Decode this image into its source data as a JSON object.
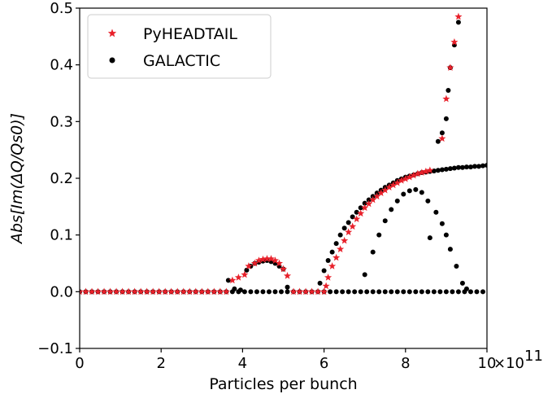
{
  "chart_data": {
    "type": "scatter",
    "xlabel": "Particles per bunch",
    "ylabel": "Abs[Im(ΔQ/Qs0)]",
    "x_offset_label": "1e11",
    "x_multiplier_text": "×10",
    "x_multiplier_exp": "11",
    "xlim": [
      0,
      10
    ],
    "ylim": [
      -0.1,
      0.5
    ],
    "x_ticks": [
      0,
      2,
      4,
      6,
      8,
      10
    ],
    "x_tick_labels": [
      "0",
      "2",
      "4",
      "6",
      "8",
      "10"
    ],
    "y_ticks": [
      -0.1,
      0.0,
      0.1,
      0.2,
      0.3,
      0.4,
      0.5
    ],
    "y_tick_labels": [
      "−0.1",
      "0.0",
      "0.1",
      "0.2",
      "0.3",
      "0.4",
      "0.5"
    ],
    "grid": false,
    "legend_position": "top-left",
    "series": [
      {
        "name": "PyHEADTAIL",
        "marker": "star",
        "color": "#e8202a",
        "points": [
          [
            0.0,
            0
          ],
          [
            0.15,
            0
          ],
          [
            0.3,
            0
          ],
          [
            0.45,
            0
          ],
          [
            0.6,
            0
          ],
          [
            0.75,
            0
          ],
          [
            0.9,
            0
          ],
          [
            1.05,
            0
          ],
          [
            1.2,
            0
          ],
          [
            1.35,
            0
          ],
          [
            1.5,
            0
          ],
          [
            1.65,
            0
          ],
          [
            1.8,
            0
          ],
          [
            1.95,
            0
          ],
          [
            2.1,
            0
          ],
          [
            2.25,
            0
          ],
          [
            2.4,
            0
          ],
          [
            2.55,
            0
          ],
          [
            2.7,
            0
          ],
          [
            2.85,
            0
          ],
          [
            3.0,
            0
          ],
          [
            3.15,
            0
          ],
          [
            3.3,
            0
          ],
          [
            3.45,
            0
          ],
          [
            3.6,
            0
          ],
          [
            3.75,
            0.02
          ],
          [
            3.9,
            0.025
          ],
          [
            4.05,
            0.03
          ],
          [
            4.15,
            0.045
          ],
          [
            4.3,
            0.05
          ],
          [
            4.4,
            0.055
          ],
          [
            4.5,
            0.057
          ],
          [
            4.6,
            0.058
          ],
          [
            4.7,
            0.058
          ],
          [
            4.8,
            0.055
          ],
          [
            4.9,
            0.05
          ],
          [
            5.0,
            0.04
          ],
          [
            5.1,
            0.028
          ],
          [
            5.25,
            0
          ],
          [
            5.4,
            0
          ],
          [
            5.55,
            0
          ],
          [
            5.7,
            0
          ],
          [
            5.85,
            0
          ],
          [
            6.0,
            0
          ],
          [
            6.05,
            0.01
          ],
          [
            6.1,
            0.025
          ],
          [
            6.2,
            0.045
          ],
          [
            6.3,
            0.06
          ],
          [
            6.4,
            0.075
          ],
          [
            6.5,
            0.09
          ],
          [
            6.6,
            0.105
          ],
          [
            6.7,
            0.115
          ],
          [
            6.8,
            0.128
          ],
          [
            6.9,
            0.138
          ],
          [
            7.0,
            0.148
          ],
          [
            7.1,
            0.155
          ],
          [
            7.2,
            0.162
          ],
          [
            7.3,
            0.168
          ],
          [
            7.4,
            0.174
          ],
          [
            7.5,
            0.179
          ],
          [
            7.6,
            0.184
          ],
          [
            7.7,
            0.188
          ],
          [
            7.8,
            0.192
          ],
          [
            7.9,
            0.196
          ],
          [
            8.0,
            0.199
          ],
          [
            8.1,
            0.202
          ],
          [
            8.2,
            0.205
          ],
          [
            8.3,
            0.208
          ],
          [
            8.4,
            0.21
          ],
          [
            8.5,
            0.212
          ],
          [
            8.6,
            0.214
          ],
          [
            8.9,
            0.27
          ],
          [
            9.0,
            0.34
          ],
          [
            9.1,
            0.395
          ],
          [
            9.2,
            0.44
          ],
          [
            9.3,
            0.485
          ]
        ]
      },
      {
        "name": "GALACTIC",
        "marker": "dot",
        "color": "#000000",
        "points": [
          [
            0.0,
            0
          ],
          [
            0.15,
            0
          ],
          [
            0.3,
            0
          ],
          [
            0.45,
            0
          ],
          [
            0.6,
            0
          ],
          [
            0.75,
            0
          ],
          [
            0.9,
            0
          ],
          [
            1.05,
            0
          ],
          [
            1.2,
            0
          ],
          [
            1.35,
            0
          ],
          [
            1.5,
            0
          ],
          [
            1.65,
            0
          ],
          [
            1.8,
            0
          ],
          [
            1.95,
            0
          ],
          [
            2.1,
            0
          ],
          [
            2.25,
            0
          ],
          [
            2.4,
            0
          ],
          [
            2.55,
            0
          ],
          [
            2.7,
            0
          ],
          [
            2.85,
            0
          ],
          [
            3.0,
            0
          ],
          [
            3.15,
            0
          ],
          [
            3.3,
            0
          ],
          [
            3.45,
            0
          ],
          [
            3.6,
            0
          ],
          [
            3.75,
            0
          ],
          [
            3.9,
            0
          ],
          [
            4.05,
            0
          ],
          [
            4.2,
            0
          ],
          [
            4.35,
            0
          ],
          [
            4.5,
            0
          ],
          [
            4.65,
            0
          ],
          [
            4.8,
            0
          ],
          [
            4.95,
            0
          ],
          [
            5.1,
            0
          ],
          [
            5.25,
            0
          ],
          [
            5.4,
            0
          ],
          [
            5.55,
            0
          ],
          [
            5.7,
            0
          ],
          [
            5.85,
            0
          ],
          [
            6.0,
            0
          ],
          [
            6.15,
            0
          ],
          [
            6.3,
            0
          ],
          [
            6.45,
            0
          ],
          [
            6.6,
            0
          ],
          [
            6.75,
            0
          ],
          [
            6.9,
            0
          ],
          [
            7.05,
            0
          ],
          [
            7.2,
            0
          ],
          [
            7.35,
            0
          ],
          [
            7.5,
            0
          ],
          [
            7.65,
            0
          ],
          [
            7.8,
            0
          ],
          [
            7.95,
            0
          ],
          [
            8.1,
            0
          ],
          [
            8.25,
            0
          ],
          [
            8.4,
            0
          ],
          [
            8.55,
            0
          ],
          [
            8.7,
            0
          ],
          [
            8.85,
            0
          ],
          [
            9.0,
            0
          ],
          [
            9.15,
            0
          ],
          [
            9.3,
            0
          ],
          [
            9.45,
            0
          ],
          [
            9.6,
            0
          ],
          [
            9.75,
            0
          ],
          [
            9.9,
            0
          ],
          [
            3.65,
            0.02
          ],
          [
            3.8,
            0.005
          ],
          [
            3.95,
            0.003
          ],
          [
            4.1,
            0.038
          ],
          [
            4.2,
            0.045
          ],
          [
            4.3,
            0.05
          ],
          [
            4.4,
            0.052
          ],
          [
            4.5,
            0.054
          ],
          [
            4.6,
            0.055
          ],
          [
            4.7,
            0.053
          ],
          [
            4.8,
            0.05
          ],
          [
            4.9,
            0.045
          ],
          [
            5.0,
            0.04
          ],
          [
            5.1,
            0.008
          ],
          [
            5.9,
            0.015
          ],
          [
            6.0,
            0.037
          ],
          [
            6.1,
            0.055
          ],
          [
            6.2,
            0.07
          ],
          [
            6.3,
            0.085
          ],
          [
            6.4,
            0.1
          ],
          [
            6.5,
            0.112
          ],
          [
            6.6,
            0.122
          ],
          [
            6.7,
            0.132
          ],
          [
            6.8,
            0.14
          ],
          [
            6.9,
            0.148
          ],
          [
            7.0,
            0.156
          ],
          [
            7.1,
            0.162
          ],
          [
            7.2,
            0.168
          ],
          [
            7.3,
            0.174
          ],
          [
            7.4,
            0.179
          ],
          [
            7.5,
            0.184
          ],
          [
            7.6,
            0.188
          ],
          [
            7.7,
            0.192
          ],
          [
            7.8,
            0.196
          ],
          [
            7.9,
            0.199
          ],
          [
            8.0,
            0.202
          ],
          [
            8.1,
            0.204
          ],
          [
            8.2,
            0.206
          ],
          [
            8.3,
            0.208
          ],
          [
            8.4,
            0.21
          ],
          [
            8.5,
            0.211
          ],
          [
            8.6,
            0.212
          ],
          [
            8.7,
            0.213
          ],
          [
            8.8,
            0.214
          ],
          [
            8.9,
            0.215
          ],
          [
            9.0,
            0.216
          ],
          [
            9.1,
            0.217
          ],
          [
            9.2,
            0.218
          ],
          [
            9.3,
            0.219
          ],
          [
            9.4,
            0.219
          ],
          [
            9.5,
            0.22
          ],
          [
            9.6,
            0.22
          ],
          [
            9.7,
            0.221
          ],
          [
            9.8,
            0.221
          ],
          [
            9.9,
            0.222
          ],
          [
            10.0,
            0.223
          ],
          [
            7.0,
            0.03
          ],
          [
            7.2,
            0.07
          ],
          [
            7.35,
            0.1
          ],
          [
            7.5,
            0.125
          ],
          [
            7.65,
            0.145
          ],
          [
            7.8,
            0.16
          ],
          [
            7.95,
            0.172
          ],
          [
            8.1,
            0.178
          ],
          [
            8.25,
            0.18
          ],
          [
            8.4,
            0.175
          ],
          [
            8.55,
            0.16
          ],
          [
            8.6,
            0.095
          ],
          [
            8.75,
            0.14
          ],
          [
            8.9,
            0.12
          ],
          [
            9.0,
            0.1
          ],
          [
            9.1,
            0.075
          ],
          [
            9.25,
            0.045
          ],
          [
            9.4,
            0.015
          ],
          [
            9.5,
            0.005
          ],
          [
            8.8,
            0.265
          ],
          [
            8.9,
            0.28
          ],
          [
            9.0,
            0.305
          ],
          [
            9.05,
            0.355
          ],
          [
            9.1,
            0.395
          ],
          [
            9.2,
            0.435
          ],
          [
            9.3,
            0.475
          ]
        ]
      }
    ]
  }
}
